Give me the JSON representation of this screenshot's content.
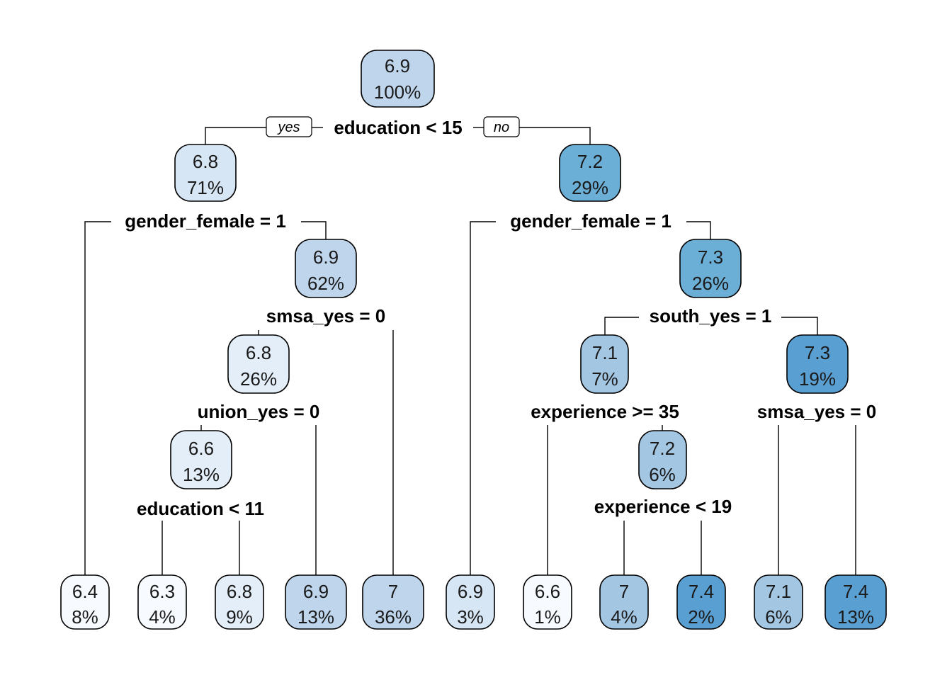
{
  "tree": {
    "branch_labels": {
      "yes": "yes",
      "no": "no"
    },
    "colors": {
      "c1": "#f7fbff",
      "c2": "#e3eef9",
      "c3": "#d6e6f4",
      "c4": "#bed5ec",
      "c5": "#a3c6e3",
      "c6": "#6baed6",
      "c7": "#5a9fd1"
    },
    "nodes": [
      {
        "id": "root",
        "value": "6.9",
        "pct": "100%",
        "color": "c4"
      },
      {
        "id": "n2",
        "value": "6.8",
        "pct": "71%",
        "color": "c3"
      },
      {
        "id": "n3",
        "value": "7.2",
        "pct": "29%",
        "color": "c6"
      },
      {
        "id": "n5",
        "value": "6.9",
        "pct": "62%",
        "color": "c4"
      },
      {
        "id": "n7",
        "value": "7.3",
        "pct": "26%",
        "color": "c6"
      },
      {
        "id": "n10",
        "value": "6.8",
        "pct": "26%",
        "color": "c2"
      },
      {
        "id": "n14",
        "value": "7.1",
        "pct": "7%",
        "color": "c5"
      },
      {
        "id": "n15",
        "value": "7.3",
        "pct": "19%",
        "color": "c7"
      },
      {
        "id": "n20",
        "value": "6.6",
        "pct": "13%",
        "color": "c2"
      },
      {
        "id": "n29",
        "value": "7.2",
        "pct": "6%",
        "color": "c5"
      },
      {
        "id": "l1",
        "value": "6.4",
        "pct": "8%",
        "color": "c1"
      },
      {
        "id": "l2",
        "value": "6.3",
        "pct": "4%",
        "color": "c1"
      },
      {
        "id": "l3",
        "value": "6.8",
        "pct": "9%",
        "color": "c2"
      },
      {
        "id": "l4",
        "value": "6.9",
        "pct": "13%",
        "color": "c4"
      },
      {
        "id": "l5",
        "value": "7",
        "pct": "36%",
        "color": "c4"
      },
      {
        "id": "l6",
        "value": "6.9",
        "pct": "3%",
        "color": "c3"
      },
      {
        "id": "l7",
        "value": "6.6",
        "pct": "1%",
        "color": "c1"
      },
      {
        "id": "l8",
        "value": "7",
        "pct": "4%",
        "color": "c5"
      },
      {
        "id": "l9",
        "value": "7.4",
        "pct": "2%",
        "color": "c7"
      },
      {
        "id": "l10",
        "value": "7.1",
        "pct": "6%",
        "color": "c5"
      },
      {
        "id": "l11",
        "value": "7.4",
        "pct": "13%",
        "color": "c7"
      }
    ],
    "splits": [
      {
        "id": "s-root",
        "text": "education < 15"
      },
      {
        "id": "s-n2",
        "text": "gender_female = 1"
      },
      {
        "id": "s-n3",
        "text": "gender_female = 1"
      },
      {
        "id": "s-n5",
        "text": "smsa_yes = 0"
      },
      {
        "id": "s-n7",
        "text": "south_yes = 1"
      },
      {
        "id": "s-n10",
        "text": "union_yes = 0"
      },
      {
        "id": "s-n14",
        "text": "experience >= 35"
      },
      {
        "id": "s-n15",
        "text": "smsa_yes = 0"
      },
      {
        "id": "s-n20",
        "text": "education < 11"
      },
      {
        "id": "s-n29",
        "text": "experience < 19"
      }
    ]
  }
}
